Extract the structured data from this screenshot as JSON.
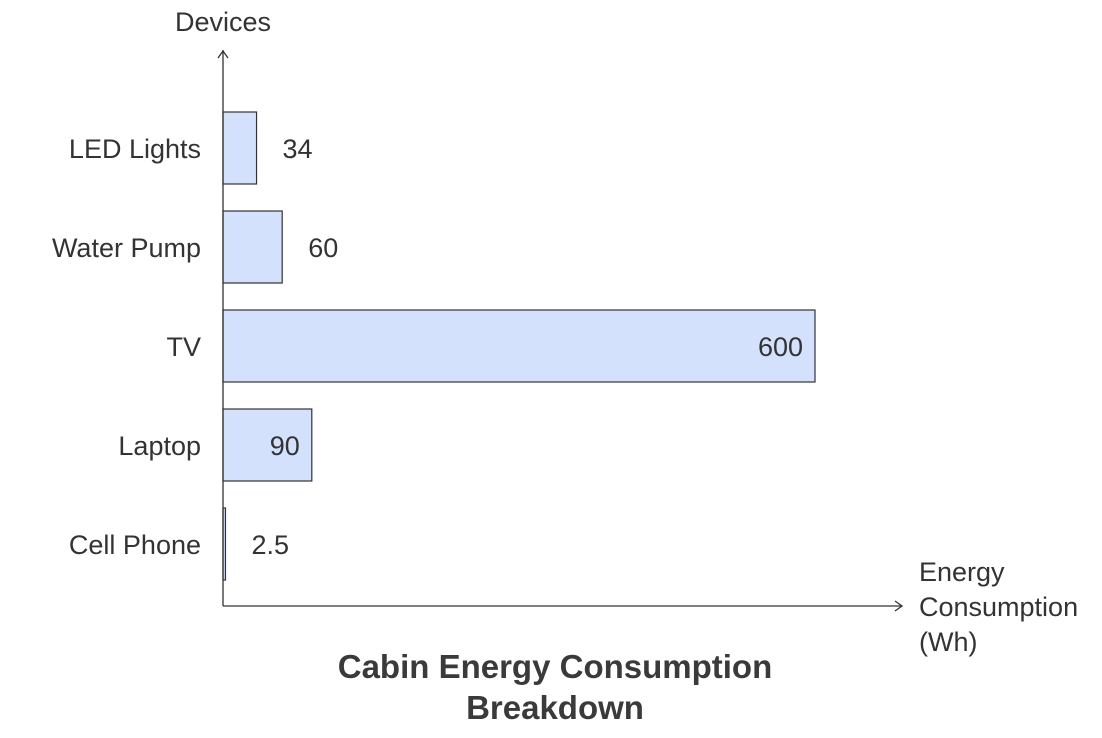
{
  "chart_data": {
    "type": "bar",
    "orientation": "horizontal",
    "categories": [
      "LED Lights",
      "Water Pump",
      "TV",
      "Laptop",
      "Cell Phone"
    ],
    "values": [
      34,
      60,
      600,
      90,
      2.5
    ],
    "value_labels": [
      "34",
      "60",
      "600",
      "90",
      "2.5"
    ],
    "title_lines": [
      "Cabin Energy Consumption",
      "Breakdown"
    ],
    "ylabel": "Devices",
    "xlabel_lines": [
      "Energy",
      "Consumption",
      "(Wh)"
    ],
    "xlim": [
      0,
      720
    ],
    "grid": false,
    "legend": "none",
    "bar_color": "#d4e1fd",
    "bar_edge_color": "#333333"
  }
}
